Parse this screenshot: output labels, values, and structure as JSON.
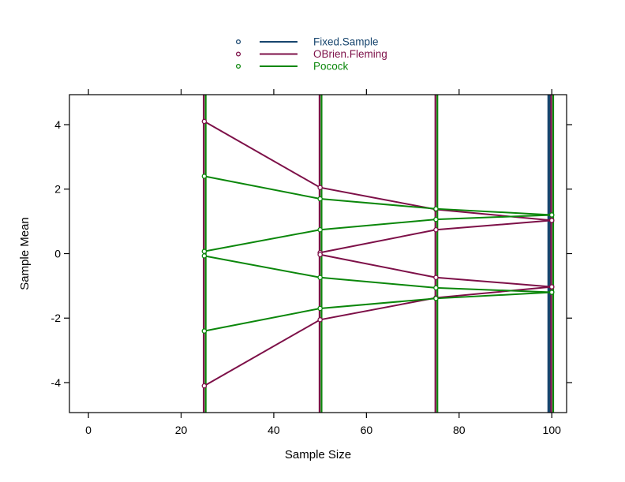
{
  "chart_data": {
    "type": "line",
    "title": "",
    "xlabel": "Sample Size",
    "ylabel": "Sample Mean",
    "xlim": [
      -4.1,
      103.2
    ],
    "ylim": [
      -4.93,
      4.93
    ],
    "x_ticks": [
      0,
      20,
      40,
      60,
      80,
      100
    ],
    "y_ticks": [
      4,
      2,
      0,
      -2,
      -4
    ],
    "grid": false,
    "marker": "open-circle",
    "legend_position": "top-center",
    "legend": [
      {
        "label": "Fixed.Sample",
        "color": "#17456E"
      },
      {
        "label": "OBrien.Fleming",
        "color": "#7D1048"
      },
      {
        "label": "Pocock",
        "color": "#0B870B"
      }
    ],
    "designs": [
      {
        "name": "Fixed.Sample",
        "color": "#17456E",
        "analysis_times": [
          100
        ],
        "offset": -3.5,
        "width": 4.0
      },
      {
        "name": "OBrien.Fleming",
        "color": "#7D1048",
        "analysis_times": [
          25,
          50,
          75,
          100
        ],
        "offset": -0.7,
        "width": 2.2
      },
      {
        "name": "Pocock",
        "color": "#0B870B",
        "analysis_times": [
          25,
          50,
          75,
          100
        ],
        "offset": 1.8,
        "width": 2.2
      }
    ],
    "series": [
      {
        "name": "OBrien.Fleming upper efficacy",
        "color": "#7D1048",
        "x": [
          25,
          50,
          75,
          100
        ],
        "y": [
          4.1,
          2.05,
          1.37,
          1.03
        ]
      },
      {
        "name": "OBrien.Fleming lower efficacy",
        "color": "#7D1048",
        "x": [
          25,
          50,
          75,
          100
        ],
        "y": [
          -4.1,
          -2.05,
          -1.37,
          -1.03
        ]
      },
      {
        "name": "OBrien.Fleming upper futility",
        "color": "#7D1048",
        "x": [
          50,
          75,
          100
        ],
        "y": [
          0.03,
          0.74,
          1.03
        ]
      },
      {
        "name": "OBrien.Fleming lower futility",
        "color": "#7D1048",
        "x": [
          50,
          75,
          100
        ],
        "y": [
          -0.03,
          -0.74,
          -1.03
        ]
      },
      {
        "name": "Pocock upper efficacy",
        "color": "#0B870B",
        "x": [
          25,
          50,
          75,
          100
        ],
        "y": [
          2.4,
          1.7,
          1.39,
          1.2
        ]
      },
      {
        "name": "Pocock lower efficacy",
        "color": "#0B870B",
        "x": [
          25,
          50,
          75,
          100
        ],
        "y": [
          -2.4,
          -1.7,
          -1.39,
          -1.2
        ]
      },
      {
        "name": "Pocock upper futility",
        "color": "#0B870B",
        "x": [
          25,
          50,
          75,
          100
        ],
        "y": [
          0.07,
          0.74,
          1.06,
          1.2
        ]
      },
      {
        "name": "Pocock lower futility",
        "color": "#0B870B",
        "x": [
          25,
          50,
          75,
          100
        ],
        "y": [
          -0.07,
          -0.74,
          -1.06,
          -1.2
        ]
      }
    ]
  }
}
